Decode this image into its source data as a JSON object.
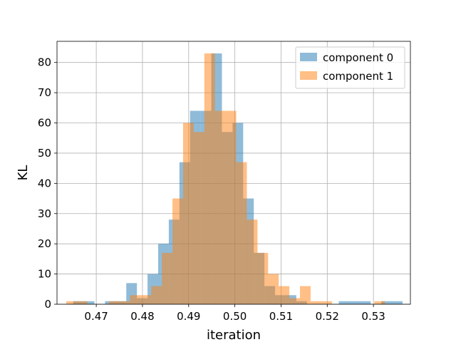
{
  "chart_data": {
    "type": "bar",
    "subtype": "overlapping histogram",
    "title": "",
    "xlabel": "iteration",
    "ylabel": "KL",
    "xlim": [
      0.4615,
      0.538
    ],
    "ylim": [
      0,
      87
    ],
    "xticks": [
      0.47,
      0.48,
      0.49,
      0.5,
      0.51,
      0.52,
      0.53
    ],
    "xtick_labels": [
      "0.47",
      "0.48",
      "0.49",
      "0.50",
      "0.51",
      "0.52",
      "0.53"
    ],
    "yticks": [
      0,
      10,
      20,
      30,
      40,
      50,
      60,
      70,
      80
    ],
    "ytick_labels": [
      "0",
      "10",
      "20",
      "30",
      "40",
      "50",
      "60",
      "70",
      "80"
    ],
    "grid": true,
    "legend_position": "top-right",
    "series": [
      {
        "name": "component 0",
        "color": "#1f77b4",
        "alpha": 0.5,
        "bin_edges": [
          0.465,
          0.4673,
          0.4696,
          0.4719,
          0.4742,
          0.4765,
          0.4788,
          0.4811,
          0.4834,
          0.4857,
          0.488,
          0.4903,
          0.4926,
          0.4949,
          0.4972,
          0.4995,
          0.5018,
          0.5041,
          0.5064,
          0.5087,
          0.511,
          0.5133,
          0.5156,
          0.5179,
          0.5202,
          0.5225,
          0.5248,
          0.5271,
          0.5294,
          0.5317,
          0.534,
          0.5363
        ],
        "counts": [
          1,
          1,
          0,
          1,
          1,
          7,
          2,
          10,
          20,
          28,
          47,
          64,
          64,
          83,
          57,
          60,
          35,
          17,
          6,
          3,
          3,
          1,
          0,
          0,
          0,
          1,
          1,
          1,
          0,
          1,
          1
        ]
      },
      {
        "name": "component 1",
        "color": "#ff7f0e",
        "alpha": 0.5,
        "bin_edges": [
          0.4635,
          0.4658,
          0.4681,
          0.4704,
          0.4727,
          0.475,
          0.4773,
          0.4796,
          0.4819,
          0.4842,
          0.4865,
          0.4888,
          0.4911,
          0.4934,
          0.4957,
          0.498,
          0.5003,
          0.5026,
          0.5049,
          0.5072,
          0.5095,
          0.5118,
          0.5141,
          0.5164,
          0.5187,
          0.521,
          0.5233,
          0.5256,
          0.5279,
          0.5302,
          0.5325,
          0.5348
        ],
        "counts": [
          1,
          1,
          0,
          0,
          1,
          1,
          3,
          3,
          6,
          17,
          35,
          60,
          57,
          83,
          64,
          64,
          47,
          28,
          17,
          10,
          6,
          2,
          6,
          1,
          1,
          0,
          0,
          0,
          0,
          1,
          0
        ]
      }
    ]
  }
}
